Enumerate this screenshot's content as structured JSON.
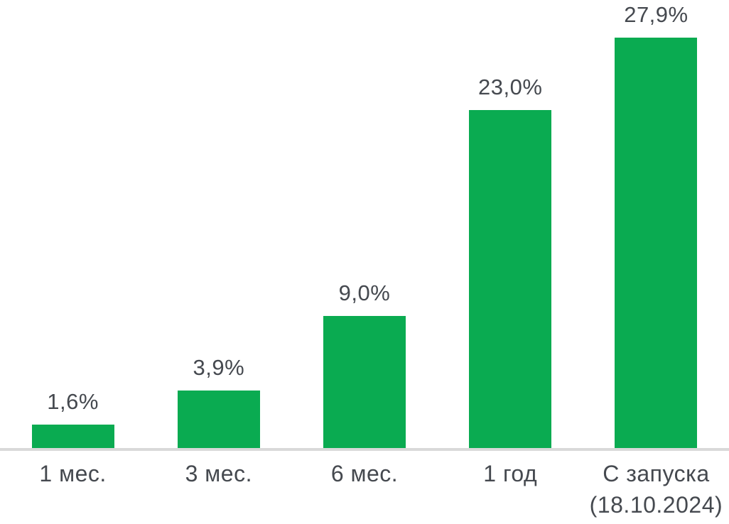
{
  "chart_data": {
    "type": "bar",
    "categories": [
      "1 мес.",
      "3 мес.",
      "6 мес.",
      "1 год",
      "С запуска\n(18.10.2024)"
    ],
    "values": [
      1.6,
      3.9,
      9.0,
      23.0,
      27.9
    ],
    "value_labels": [
      "1,6%",
      "3,9%",
      "9,0%",
      "23,0%",
      "27,9%"
    ],
    "title": "",
    "xlabel": "",
    "ylabel": "",
    "ylim": [
      0,
      30
    ],
    "unit": "%",
    "grid": false,
    "legend": "none",
    "bar_color": "#0aab51",
    "axis_line_color": "#d9d9d9",
    "label_color": "#45494f"
  }
}
